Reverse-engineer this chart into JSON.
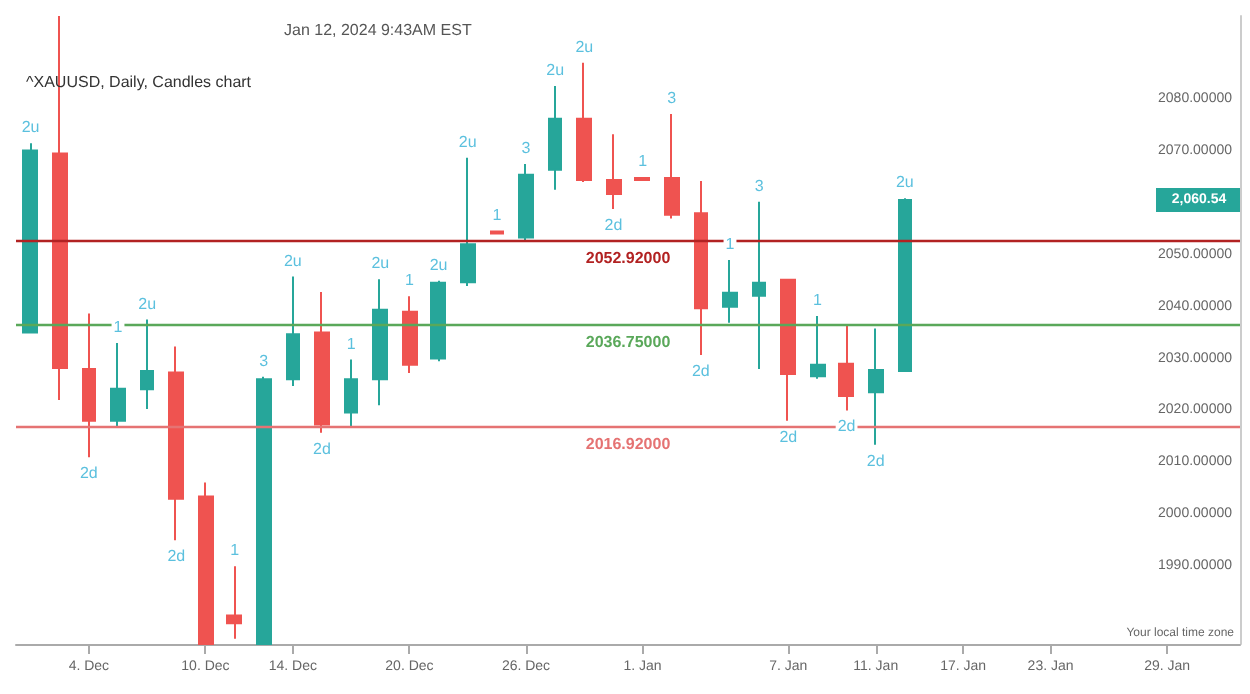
{
  "chart_data": {
    "type": "candlestick",
    "title": "^XAUUSD, Daily, Candles chart",
    "subtitle": "Jan 12, 2024 9:43AM EST",
    "categories": [
      null,
      null,
      "4. Dec",
      null,
      null,
      null,
      "10. Dec",
      null,
      null,
      "14. Dec",
      null,
      null,
      null,
      "20. Dec",
      null,
      null,
      null,
      "26. Dec",
      null,
      null,
      null,
      "1. Jan",
      null,
      null,
      null,
      null,
      "7. Jan",
      null,
      null,
      "11. Jan",
      null,
      null,
      "17. Jan",
      null,
      null,
      "23. Jan",
      null,
      null,
      null,
      "29. Jan",
      null,
      null
    ],
    "ohlc": [
      [
        2035,
        2071.5,
        2035,
        2070.1
      ],
      [
        2069.5,
        2096,
        2022,
        2028.2
      ],
      [
        2028,
        2038.7,
        2011,
        2018
      ],
      [
        2018,
        2033,
        2017,
        2024.2
      ],
      [
        2024.1,
        2037.5,
        2020.3,
        2027.6
      ],
      [
        2027.3,
        2032.3,
        1995,
        2003
      ],
      [
        2003.4,
        2006.1,
        1975,
        1975
      ],
      [
        1980.5,
        1990,
        1976,
        1979
      ],
      [
        1975,
        2026.5,
        1975,
        2026
      ],
      [
        2026,
        2045.8,
        2024.7,
        2034.7
      ],
      [
        2035,
        2042.8,
        2015.7,
        2017.3
      ],
      [
        2019.6,
        2029.8,
        2016.92,
        2026
      ],
      [
        2026,
        2045.3,
        2021,
        2039.4
      ],
      [
        2039,
        2042,
        2027.2,
        2028.8
      ],
      [
        2030,
        2045,
        2029.5,
        2044.6
      ],
      [
        2044.7,
        2068.7,
        2044,
        2052
      ],
      [
        2054.5,
        2054.6,
        2054,
        2054.1
      ],
      [
        2053.3,
        2067.5,
        2052.5,
        2065.4
      ],
      [
        2066.4,
        2082.5,
        2062.5,
        2076.2
      ],
      [
        2076.2,
        2087,
        2064,
        2064.4
      ],
      [
        2064.4,
        2073.2,
        2058.8,
        2061.7
      ],
      [
        2064.8,
        2065,
        2064.3,
        2064.4
      ],
      [
        2064.8,
        2077.1,
        2057,
        2057.7
      ],
      [
        2058,
        2064.2,
        2030.7,
        2039.7
      ],
      [
        2040,
        2049,
        2036.9,
        2042.7
      ],
      [
        2042.1,
        2060.2,
        2028,
        2044.6
      ],
      [
        2045.2,
        2045.3,
        2018,
        2027
      ],
      [
        2026.6,
        2038.2,
        2026.1,
        2028.8
      ],
      [
        2029,
        2036.4,
        2020,
        2022.8
      ],
      [
        2023.5,
        2035.8,
        2013.4,
        2027.8
      ],
      [
        2027.6,
        2060.9,
        2027.4,
        2060.54
      ],
      null,
      null,
      null,
      null,
      null,
      null,
      null,
      null,
      null,
      null,
      null
    ],
    "colors": [
      "#26a69a",
      "#ef5350",
      "#ef5350",
      "#26a69a",
      "#26a69a",
      "#ef5350",
      "#ef5350",
      "#ef5350",
      "#26a69a",
      "#26a69a",
      "#ef5350",
      "#26a69a",
      "#26a69a",
      "#ef5350",
      "#26a69a",
      "#26a69a",
      "#ef5350",
      "#26a69a",
      "#26a69a",
      "#ef5350",
      "#ef5350",
      "#ef5350",
      "#ef5350",
      "#ef5350",
      "#26a69a",
      "#26a69a",
      "#ef5350",
      "#26a69a",
      "#ef5350",
      "#26a69a",
      "#26a69a",
      null,
      null,
      null,
      null,
      null,
      null,
      null,
      null,
      null,
      null,
      null
    ],
    "value_labels": [
      "2u",
      null,
      "2d",
      "1",
      "2u",
      "2d",
      null,
      "1",
      "3",
      "2u",
      "2d",
      "1",
      "2u",
      "1",
      "2u",
      "2u",
      "1",
      "3",
      "2u",
      "2u",
      "2d",
      "1",
      "3",
      "2d",
      "1",
      "3",
      "2d",
      "1",
      "2d",
      "2d",
      "2u",
      null,
      null,
      null,
      null,
      null,
      null,
      null,
      null,
      null,
      null,
      null
    ],
    "ylim": [
      1975,
      2096
    ],
    "yticks": [
      {
        "value": 1990,
        "label": "1990.00000"
      },
      {
        "value": 2000,
        "label": "2000.00000"
      },
      {
        "value": 2010,
        "label": "2010.00000"
      },
      {
        "value": 2020,
        "label": "2020.00000"
      },
      {
        "value": 2030,
        "label": "2030.00000"
      },
      {
        "value": 2040,
        "label": "2040.00000"
      },
      {
        "value": 2050,
        "label": "2050.00000"
      },
      {
        "value": 2070,
        "label": "2070.00000"
      },
      {
        "value": 2080,
        "label": "2080.00000"
      }
    ],
    "ref_lines": [
      {
        "axis": "y",
        "value": 2052.92,
        "label": "2052.92000",
        "color": "#b22222"
      },
      {
        "axis": "y",
        "value": 2016.92,
        "label": "2016.92000",
        "color": "#e57373"
      },
      {
        "axis": "y",
        "value": 2036.75,
        "label": "2036.75000",
        "color": "#5aa85a"
      }
    ],
    "annotations": [
      "2,060.54",
      "Your local time zone"
    ],
    "grid": false
  }
}
